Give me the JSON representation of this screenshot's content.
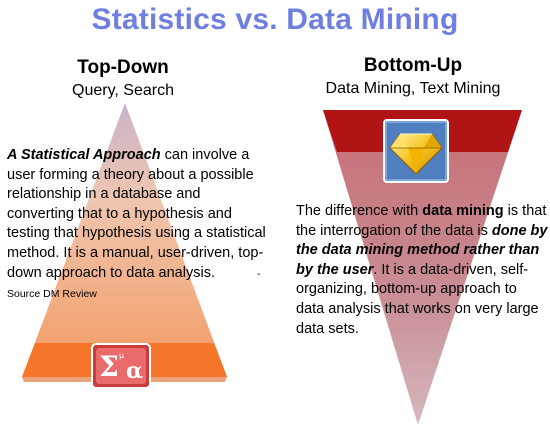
{
  "title": "Statistics vs. Data Mining",
  "left": {
    "heading": "Top-Down",
    "subheading": "Query, Search",
    "lead_emphasis": "A Statistical Approach",
    "body": " can involve a user forming a theory about a possible relationship in a database and converting that to a  hypothesis and testing that hypothesis using a statistical method. It is a manual, user-driven, top-down approach to data analysis.",
    "source": "- Source DM Review",
    "icon": "sigma-alpha-statistics-icon"
  },
  "right": {
    "heading": "Bottom-Up",
    "subheading": "Data Mining, Text Mining",
    "text_part1": "The difference with ",
    "text_bold": "data mining",
    "text_part2": " is that the interrogation of the data is ",
    "text_bold_italic": "done by the data mining method rather than by the user",
    "text_part3": ".  It is a data-driven, self-organizing, bottom-up approach to data analysis that works on very large data sets.",
    "icon": "gold-diamond-mining-icon"
  },
  "colors": {
    "title": "#6f7fe0",
    "left_triangle_top": "#f7e1cf",
    "left_triangle_bottom": "#f07a2c",
    "right_triangle_top": "#b01818",
    "right_triangle_bottom": "#c99aa2"
  }
}
